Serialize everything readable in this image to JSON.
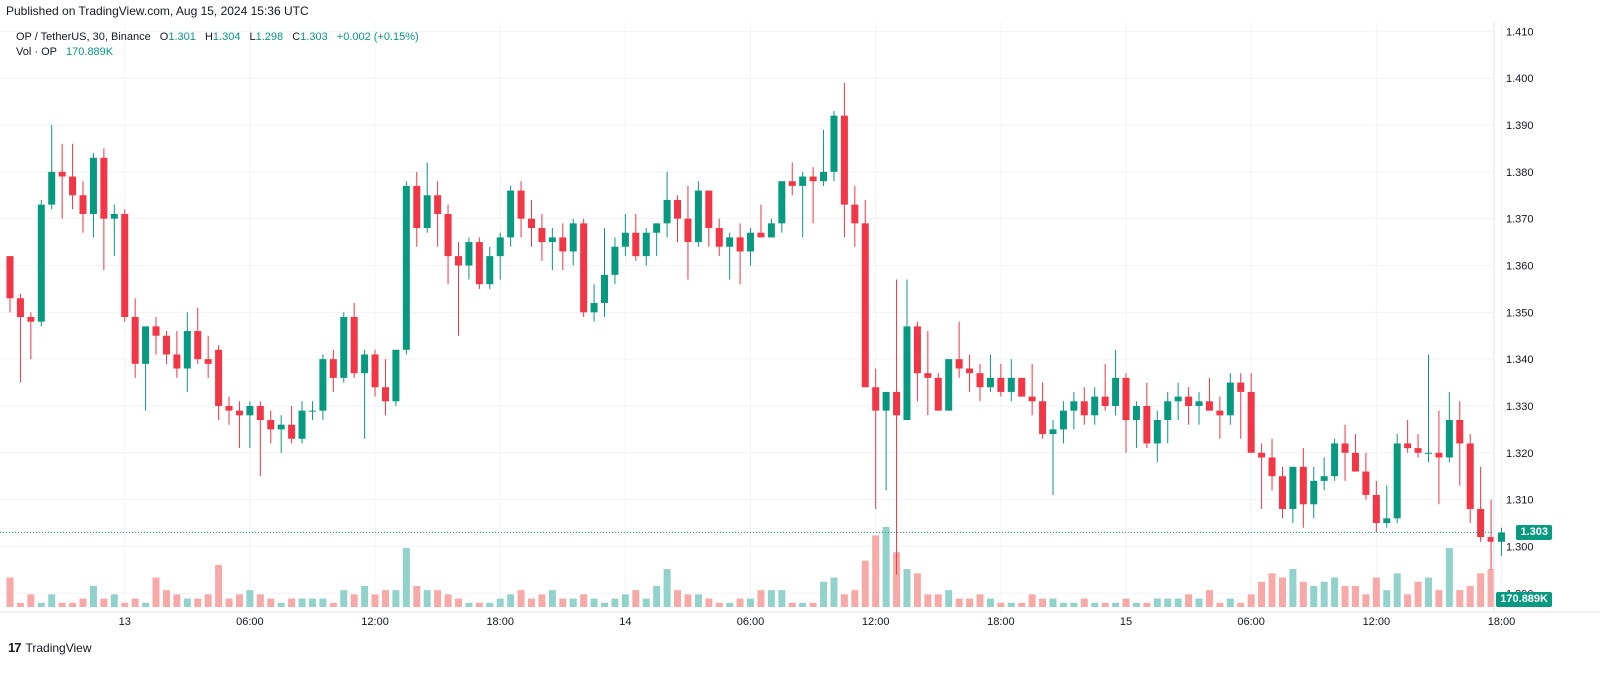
{
  "header": {
    "published": "Published on TradingView.com, Aug 15, 2024 15:36 UTC"
  },
  "legend": {
    "symbol": "OP / TetherUS, 30, Binance",
    "o_label": "O",
    "o": "1.301",
    "h_label": "H",
    "h": "1.304",
    "l_label": "L",
    "l": "1.298",
    "c_label": "C",
    "c": "1.303",
    "change": "+0.002 (+0.15%)",
    "vol_label": "Vol · OP",
    "vol": "170.889K"
  },
  "tags": {
    "last_price": "1.303",
    "last_volume": "170.889K"
  },
  "footer": {
    "brand": "TradingView",
    "logo": "17"
  },
  "colors": {
    "up": "#089981",
    "down": "#F23645",
    "up_vol": "#92D2CC",
    "down_vol": "#F7A9A7",
    "grid": "#F0F3FA"
  },
  "chart_data": {
    "type": "candlestick",
    "interval_minutes": 30,
    "start": "2024-08-12T18:30:00Z",
    "ylim": [
      1.286,
      1.412
    ],
    "y_ticks": [
      "1.290",
      "1.300",
      "1.310",
      "1.320",
      "1.330",
      "1.340",
      "1.350",
      "1.360",
      "1.370",
      "1.380",
      "1.390",
      "1.400",
      "1.410"
    ],
    "x_ticks": [
      {
        "label": "13",
        "time": "2024-08-13T00:00:00Z"
      },
      {
        "label": "06:00",
        "time": "2024-08-13T06:00:00Z"
      },
      {
        "label": "12:00",
        "time": "2024-08-13T12:00:00Z"
      },
      {
        "label": "18:00",
        "time": "2024-08-13T18:00:00Z"
      },
      {
        "label": "14",
        "time": "2024-08-14T00:00:00Z"
      },
      {
        "label": "06:00",
        "time": "2024-08-14T06:00:00Z"
      },
      {
        "label": "12:00",
        "time": "2024-08-14T12:00:00Z"
      },
      {
        "label": "18:00",
        "time": "2024-08-14T18:00:00Z"
      },
      {
        "label": "15",
        "time": "2024-08-15T00:00:00Z"
      },
      {
        "label": "06:00",
        "time": "2024-08-15T06:00:00Z"
      },
      {
        "label": "12:00",
        "time": "2024-08-15T12:00:00Z"
      },
      {
        "label": "18:00",
        "time": "2024-08-15T18:00:00Z"
      }
    ],
    "ohlc": [
      [
        1.362,
        1.362,
        1.35,
        1.353
      ],
      [
        1.353,
        1.354,
        1.335,
        1.349
      ],
      [
        1.349,
        1.35,
        1.34,
        1.348
      ],
      [
        1.348,
        1.374,
        1.347,
        1.373
      ],
      [
        1.373,
        1.39,
        1.372,
        1.38
      ],
      [
        1.38,
        1.386,
        1.37,
        1.379
      ],
      [
        1.379,
        1.386,
        1.372,
        1.375
      ],
      [
        1.375,
        1.378,
        1.367,
        1.371
      ],
      [
        1.371,
        1.384,
        1.366,
        1.383
      ],
      [
        1.383,
        1.385,
        1.359,
        1.37
      ],
      [
        1.37,
        1.373,
        1.362,
        1.371
      ],
      [
        1.371,
        1.372,
        1.348,
        1.349
      ],
      [
        1.349,
        1.353,
        1.336,
        1.339
      ],
      [
        1.339,
        1.346,
        1.329,
        1.347
      ],
      [
        1.347,
        1.349,
        1.341,
        1.345
      ],
      [
        1.345,
        1.346,
        1.339,
        1.341
      ],
      [
        1.341,
        1.346,
        1.336,
        1.338
      ],
      [
        1.338,
        1.35,
        1.333,
        1.346
      ],
      [
        1.346,
        1.351,
        1.339,
        1.34
      ],
      [
        1.34,
        1.345,
        1.336,
        1.339
      ],
      [
        1.342,
        1.343,
        1.327,
        1.33
      ],
      [
        1.33,
        1.332,
        1.326,
        1.329
      ],
      [
        1.329,
        1.331,
        1.321,
        1.328
      ],
      [
        1.328,
        1.331,
        1.321,
        1.33
      ],
      [
        1.33,
        1.331,
        1.315,
        1.327
      ],
      [
        1.327,
        1.329,
        1.322,
        1.325
      ],
      [
        1.325,
        1.328,
        1.32,
        1.326
      ],
      [
        1.326,
        1.33,
        1.322,
        1.323
      ],
      [
        1.323,
        1.331,
        1.322,
        1.329
      ],
      [
        1.329,
        1.331,
        1.327,
        1.329
      ],
      [
        1.329,
        1.341,
        1.327,
        1.34
      ],
      [
        1.34,
        1.342,
        1.333,
        1.336
      ],
      [
        1.336,
        1.35,
        1.335,
        1.349
      ],
      [
        1.349,
        1.352,
        1.336,
        1.337
      ],
      [
        1.337,
        1.342,
        1.323,
        1.341
      ],
      [
        1.341,
        1.342,
        1.332,
        1.334
      ],
      [
        1.334,
        1.34,
        1.328,
        1.331
      ],
      [
        1.331,
        1.342,
        1.33,
        1.342
      ],
      [
        1.342,
        1.378,
        1.341,
        1.377
      ],
      [
        1.377,
        1.38,
        1.364,
        1.368
      ],
      [
        1.368,
        1.382,
        1.367,
        1.375
      ],
      [
        1.375,
        1.378,
        1.364,
        1.371
      ],
      [
        1.371,
        1.373,
        1.356,
        1.362
      ],
      [
        1.362,
        1.365,
        1.345,
        1.36
      ],
      [
        1.36,
        1.366,
        1.357,
        1.365
      ],
      [
        1.365,
        1.366,
        1.355,
        1.356
      ],
      [
        1.356,
        1.364,
        1.355,
        1.362
      ],
      [
        1.362,
        1.367,
        1.357,
        1.366
      ],
      [
        1.366,
        1.377,
        1.364,
        1.376
      ],
      [
        1.376,
        1.378,
        1.366,
        1.37
      ],
      [
        1.37,
        1.374,
        1.364,
        1.368
      ],
      [
        1.368,
        1.371,
        1.361,
        1.365
      ],
      [
        1.365,
        1.368,
        1.359,
        1.366
      ],
      [
        1.366,
        1.369,
        1.359,
        1.363
      ],
      [
        1.363,
        1.37,
        1.36,
        1.369
      ],
      [
        1.369,
        1.37,
        1.349,
        1.35
      ],
      [
        1.35,
        1.356,
        1.348,
        1.352
      ],
      [
        1.352,
        1.368,
        1.349,
        1.358
      ],
      [
        1.358,
        1.366,
        1.356,
        1.364
      ],
      [
        1.364,
        1.371,
        1.362,
        1.367
      ],
      [
        1.367,
        1.371,
        1.361,
        1.362
      ],
      [
        1.362,
        1.368,
        1.36,
        1.367
      ],
      [
        1.367,
        1.369,
        1.362,
        1.369
      ],
      [
        1.369,
        1.38,
        1.366,
        1.374
      ],
      [
        1.374,
        1.375,
        1.365,
        1.37
      ],
      [
        1.37,
        1.377,
        1.357,
        1.365
      ],
      [
        1.365,
        1.378,
        1.364,
        1.376
      ],
      [
        1.376,
        1.376,
        1.364,
        1.368
      ],
      [
        1.368,
        1.37,
        1.362,
        1.364
      ],
      [
        1.364,
        1.367,
        1.357,
        1.366
      ],
      [
        1.366,
        1.369,
        1.356,
        1.363
      ],
      [
        1.363,
        1.368,
        1.36,
        1.367
      ],
      [
        1.367,
        1.373,
        1.366,
        1.366
      ],
      [
        1.366,
        1.37,
        1.366,
        1.369
      ],
      [
        1.369,
        1.378,
        1.367,
        1.378
      ],
      [
        1.378,
        1.382,
        1.375,
        1.377
      ],
      [
        1.377,
        1.38,
        1.366,
        1.379
      ],
      [
        1.379,
        1.381,
        1.369,
        1.378
      ],
      [
        1.378,
        1.389,
        1.377,
        1.38
      ],
      [
        1.38,
        1.393,
        1.378,
        1.392
      ],
      [
        1.392,
        1.399,
        1.366,
        1.373
      ],
      [
        1.373,
        1.377,
        1.364,
        1.369
      ],
      [
        1.369,
        1.374,
        1.334,
        1.334
      ],
      [
        1.334,
        1.338,
        1.308,
        1.329
      ],
      [
        1.329,
        1.333,
        1.312,
        1.333
      ],
      [
        1.333,
        1.357,
        1.294,
        1.328
      ],
      [
        1.327,
        1.357,
        1.327,
        1.347
      ],
      [
        1.347,
        1.348,
        1.331,
        1.337
      ],
      [
        1.337,
        1.346,
        1.328,
        1.336
      ],
      [
        1.336,
        1.337,
        1.329,
        1.329
      ],
      [
        1.329,
        1.34,
        1.329,
        1.34
      ],
      [
        1.34,
        1.348,
        1.336,
        1.338
      ],
      [
        1.338,
        1.341,
        1.333,
        1.337
      ],
      [
        1.337,
        1.339,
        1.331,
        1.334
      ],
      [
        1.334,
        1.341,
        1.333,
        1.336
      ],
      [
        1.336,
        1.339,
        1.332,
        1.333
      ],
      [
        1.333,
        1.34,
        1.331,
        1.336
      ],
      [
        1.336,
        1.336,
        1.332,
        1.332
      ],
      [
        1.332,
        1.339,
        1.328,
        1.331
      ],
      [
        1.331,
        1.335,
        1.323,
        1.324
      ],
      [
        1.324,
        1.327,
        1.311,
        1.325
      ],
      [
        1.325,
        1.331,
        1.322,
        1.329
      ],
      [
        1.329,
        1.333,
        1.325,
        1.331
      ],
      [
        1.331,
        1.334,
        1.326,
        1.328
      ],
      [
        1.328,
        1.334,
        1.326,
        1.332
      ],
      [
        1.332,
        1.339,
        1.329,
        1.33
      ],
      [
        1.33,
        1.342,
        1.328,
        1.336
      ],
      [
        1.336,
        1.337,
        1.32,
        1.327
      ],
      [
        1.327,
        1.331,
        1.321,
        1.33
      ],
      [
        1.33,
        1.335,
        1.321,
        1.322
      ],
      [
        1.322,
        1.329,
        1.318,
        1.327
      ],
      [
        1.327,
        1.333,
        1.322,
        1.331
      ],
      [
        1.331,
        1.335,
        1.327,
        1.332
      ],
      [
        1.332,
        1.334,
        1.326,
        1.33
      ],
      [
        1.33,
        1.333,
        1.326,
        1.331
      ],
      [
        1.331,
        1.336,
        1.329,
        1.329
      ],
      [
        1.329,
        1.332,
        1.323,
        1.328
      ],
      [
        1.328,
        1.337,
        1.326,
        1.335
      ],
      [
        1.335,
        1.337,
        1.323,
        1.333
      ],
      [
        1.333,
        1.337,
        1.32,
        1.32
      ],
      [
        1.32,
        1.322,
        1.308,
        1.319
      ],
      [
        1.319,
        1.323,
        1.312,
        1.315
      ],
      [
        1.315,
        1.317,
        1.306,
        1.308
      ],
      [
        1.308,
        1.317,
        1.305,
        1.317
      ],
      [
        1.317,
        1.321,
        1.304,
        1.309
      ],
      [
        1.309,
        1.317,
        1.306,
        1.314
      ],
      [
        1.314,
        1.319,
        1.312,
        1.315
      ],
      [
        1.315,
        1.323,
        1.314,
        1.322
      ],
      [
        1.322,
        1.326,
        1.314,
        1.32
      ],
      [
        1.32,
        1.324,
        1.316,
        1.316
      ],
      [
        1.316,
        1.32,
        1.31,
        1.311
      ],
      [
        1.311,
        1.314,
        1.303,
        1.305
      ],
      [
        1.305,
        1.313,
        1.304,
        1.306
      ],
      [
        1.306,
        1.324,
        1.305,
        1.322
      ],
      [
        1.322,
        1.327,
        1.32,
        1.321
      ],
      [
        1.321,
        1.324,
        1.319,
        1.32
      ],
      [
        1.32,
        1.341,
        1.318,
        1.32
      ],
      [
        1.32,
        1.329,
        1.309,
        1.319
      ],
      [
        1.319,
        1.333,
        1.318,
        1.327
      ],
      [
        1.327,
        1.331,
        1.313,
        1.322
      ],
      [
        1.322,
        1.324,
        1.305,
        1.308
      ],
      [
        1.308,
        1.317,
        1.301,
        1.302
      ],
      [
        1.302,
        1.31,
        1.295,
        1.301
      ],
      [
        1.301,
        1.304,
        1.298,
        1.303
      ]
    ],
    "volume": [
      7,
      1,
      3,
      1,
      3,
      1,
      1,
      2,
      5,
      2,
      3,
      1,
      2,
      1,
      7,
      4,
      3,
      2,
      2,
      3,
      10,
      2,
      3,
      4,
      3,
      2,
      1,
      2,
      2,
      2,
      2,
      1,
      4,
      3,
      5,
      3,
      4,
      4,
      14,
      5,
      4,
      4,
      3,
      2,
      1,
      1,
      1,
      2,
      3,
      4,
      2,
      3,
      4,
      2,
      2,
      3,
      2,
      1,
      2,
      3,
      4,
      2,
      5,
      9,
      4,
      3,
      3,
      2,
      1,
      1,
      2,
      2,
      4,
      4,
      4,
      1,
      1,
      1,
      6,
      7,
      3,
      4,
      11,
      17,
      19,
      13,
      9,
      8,
      3,
      3,
      4,
      2,
      2,
      3,
      2,
      1,
      1,
      1,
      3,
      2,
      2,
      1,
      1,
      2,
      1,
      1,
      1,
      2,
      1,
      1,
      2,
      2,
      2,
      3,
      2,
      4,
      1,
      2,
      1,
      3,
      6,
      8,
      7,
      9,
      6,
      5,
      6,
      7,
      5,
      5,
      3,
      7,
      4,
      8,
      3,
      6,
      7,
      4,
      14,
      4,
      5,
      8,
      9,
      1,
      1,
      1
    ],
    "last_price": 1.303
  }
}
